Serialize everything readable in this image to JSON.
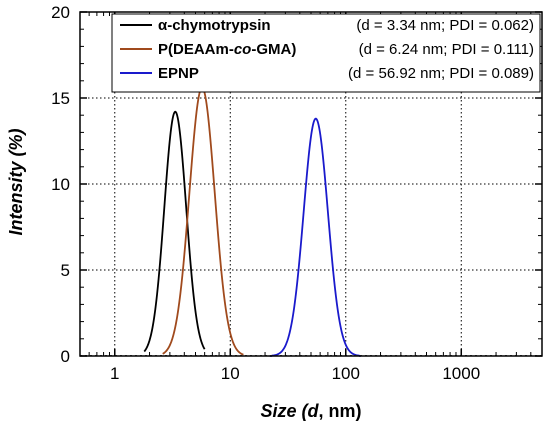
{
  "chart_data": {
    "type": "line",
    "x_scale": "log",
    "xlim": [
      0.5,
      5000
    ],
    "ylim": [
      0,
      20
    ],
    "xlabel": {
      "prefix": "Size (",
      "italic": "d",
      "suffix": ", nm)"
    },
    "ylabel": "Intensity (%)",
    "x_ticks": [
      1,
      10,
      100,
      1000
    ],
    "x_tick_labels": [
      "1",
      "10",
      "100",
      "1000"
    ],
    "y_ticks": [
      0,
      5,
      10,
      15,
      20
    ],
    "y_tick_labels": [
      "0",
      "5",
      "10",
      "15",
      "20"
    ],
    "grid": true,
    "legend_position": "top-right",
    "series": [
      {
        "name_parts": [
          {
            "text": "α-chymotrypsin",
            "italic": false
          }
        ],
        "stats": "(d = 3.34 nm; PDI = 0.062)",
        "color": "#000000",
        "peak_x": 3.34,
        "peak_y": 14.2,
        "width_log10": 0.095,
        "x_range": [
          1.8,
          6.0
        ]
      },
      {
        "name_parts": [
          {
            "text": "P(DEAAm-",
            "italic": false
          },
          {
            "text": "co",
            "italic": true
          },
          {
            "text": "-GMA)",
            "italic": false
          }
        ],
        "stats": "(d = 6.24 nm; PDI = 0.111)",
        "color": "#a04a1d",
        "peak_x": 5.7,
        "peak_y": 15.6,
        "width_log10": 0.11,
        "x_range": [
          2.6,
          13.0
        ]
      },
      {
        "name_parts": [
          {
            "text": "EPNP",
            "italic": false
          }
        ],
        "stats": "(d = 56.92 nm; PDI = 0.089)",
        "color": "#1a1acc",
        "peak_x": 55.0,
        "peak_y": 13.8,
        "width_log10": 0.105,
        "x_range": [
          22.0,
          135.0
        ]
      }
    ]
  }
}
